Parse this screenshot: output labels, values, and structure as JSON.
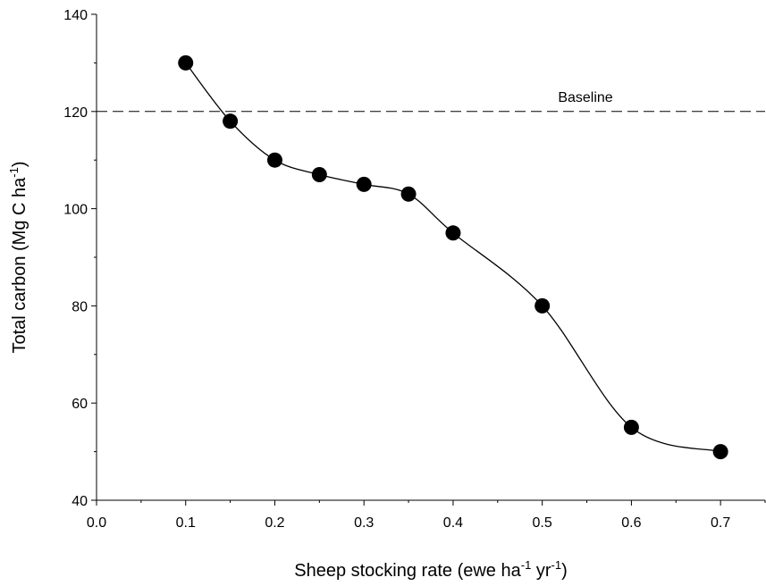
{
  "chart_data": {
    "type": "scatter",
    "x": [
      0.1,
      0.15,
      0.2,
      0.25,
      0.3,
      0.35,
      0.4,
      0.5,
      0.6,
      0.7
    ],
    "series": [
      {
        "values": [
          130,
          118,
          110,
          107,
          105,
          103,
          95,
          80,
          55,
          50
        ]
      }
    ],
    "xlim": [
      0.0,
      0.75
    ],
    "ylim": [
      40,
      140
    ],
    "xticks": [
      "0.0",
      "0.1",
      "0.2",
      "0.3",
      "0.4",
      "0.5",
      "0.6",
      "0.7"
    ],
    "xtick_values": [
      0.0,
      0.1,
      0.2,
      0.3,
      0.4,
      0.5,
      0.6,
      0.7
    ],
    "yticks": [
      "40",
      "60",
      "80",
      "100",
      "120",
      "140"
    ],
    "ytick_values": [
      40,
      60,
      80,
      100,
      120,
      140
    ],
    "xlabel": {
      "prefix": "Sheep stocking rate (ewe ha",
      "sup1": "-1",
      "middle": " yr",
      "sup2": "-1",
      "suffix": ")"
    },
    "ylabel": {
      "prefix": "Total carbon (Mg C ha",
      "sup": "-1",
      "suffix": ")"
    },
    "baseline": {
      "label": "Baseline",
      "value": 120
    },
    "grid": false,
    "marker_color": "#000000",
    "line_color": "#000000"
  }
}
